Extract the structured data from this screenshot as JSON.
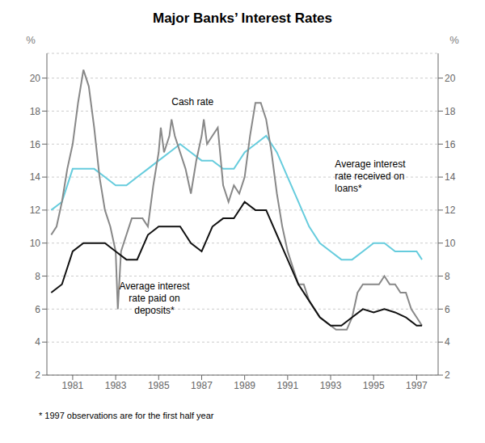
{
  "chart_data": {
    "type": "line",
    "title": "Major Banks’ Interest Rates",
    "ylabel": "%",
    "y2label": "%",
    "footnote": "* 1997 observations are for the first half year",
    "xlim": [
      1979.8,
      1998.0
    ],
    "xticks": [
      1981,
      1983,
      1985,
      1987,
      1989,
      1991,
      1993,
      1995,
      1997
    ],
    "ylim": [
      2,
      21.5
    ],
    "yticks": [
      2,
      4,
      6,
      8,
      10,
      12,
      14,
      16,
      18,
      20
    ],
    "y2lim": [
      2,
      21.5
    ],
    "y2ticks": [
      2,
      4,
      6,
      8,
      10,
      12,
      14,
      16,
      18,
      20
    ],
    "grid": true,
    "series": [
      {
        "color": "#66ccdd",
        "x": [
          1980.0,
          1980.5,
          1981.0,
          1981.5,
          1982.0,
          1982.5,
          1983.0,
          1983.5,
          1984.0,
          1984.5,
          1985.0,
          1985.5,
          1986.0,
          1986.5,
          1987.0,
          1987.5,
          1988.0,
          1988.5,
          1989.0,
          1989.5,
          1990.0,
          1990.5,
          1991.0,
          1991.5,
          1992.0,
          1992.5,
          1993.0,
          1993.5,
          1994.0,
          1994.5,
          1995.0,
          1995.5,
          1996.0,
          1996.5,
          1997.0,
          1997.25
        ],
        "values": [
          12.0,
          12.5,
          14.5,
          14.5,
          14.5,
          14.0,
          13.5,
          13.5,
          14.0,
          14.5,
          15.0,
          15.5,
          16.0,
          15.5,
          15.0,
          15.0,
          14.5,
          14.5,
          15.5,
          16.0,
          16.5,
          15.5,
          14.0,
          12.5,
          11.0,
          10.0,
          9.5,
          9.0,
          9.0,
          9.5,
          10.0,
          10.0,
          9.5,
          9.5,
          9.5,
          9.0
        ]
      },
      {
        "color": "#888888",
        "x": [
          1980.0,
          1980.25,
          1980.5,
          1980.75,
          1981.0,
          1981.25,
          1981.5,
          1981.75,
          1982.0,
          1982.25,
          1982.5,
          1982.75,
          1983.0,
          1983.1,
          1983.25,
          1983.5,
          1983.75,
          1984.0,
          1984.25,
          1984.5,
          1984.75,
          1985.0,
          1985.1,
          1985.25,
          1985.5,
          1985.6,
          1985.75,
          1986.0,
          1986.25,
          1986.5,
          1986.75,
          1987.0,
          1987.1,
          1987.25,
          1987.5,
          1987.75,
          1988.0,
          1988.25,
          1988.5,
          1988.75,
          1989.0,
          1989.25,
          1989.5,
          1989.75,
          1990.0,
          1990.25,
          1990.5,
          1990.75,
          1991.0,
          1991.25,
          1991.5,
          1991.75,
          1992.0,
          1992.25,
          1992.5,
          1992.75,
          1993.0,
          1993.25,
          1993.5,
          1993.75,
          1994.0,
          1994.25,
          1994.5,
          1994.75,
          1995.0,
          1995.25,
          1995.5,
          1995.75,
          1996.0,
          1996.25,
          1996.5,
          1996.75,
          1997.0,
          1997.25
        ],
        "values": [
          10.5,
          11.0,
          12.5,
          14.5,
          16.0,
          18.5,
          20.5,
          19.5,
          17.0,
          14.0,
          12.0,
          11.0,
          9.5,
          6.0,
          9.5,
          10.5,
          11.5,
          11.5,
          11.5,
          11.0,
          13.5,
          15.5,
          17.0,
          15.5,
          16.5,
          17.5,
          16.5,
          15.5,
          14.5,
          13.0,
          15.0,
          16.5,
          17.5,
          16.0,
          16.5,
          17.0,
          13.5,
          12.5,
          13.5,
          13.0,
          14.0,
          16.5,
          18.5,
          18.5,
          17.5,
          15.5,
          13.0,
          11.0,
          9.5,
          8.5,
          7.5,
          7.5,
          6.5,
          6.0,
          5.5,
          5.25,
          5.0,
          4.75,
          4.75,
          4.75,
          5.5,
          7.0,
          7.5,
          7.5,
          7.5,
          7.5,
          8.0,
          7.5,
          7.5,
          7.0,
          7.0,
          6.0,
          5.5,
          5.0
        ]
      },
      {
        "color": "#111111",
        "x": [
          1980.0,
          1980.5,
          1981.0,
          1981.5,
          1982.0,
          1982.5,
          1983.0,
          1983.5,
          1984.0,
          1984.5,
          1985.0,
          1985.5,
          1986.0,
          1986.5,
          1987.0,
          1987.5,
          1988.0,
          1988.5,
          1989.0,
          1989.5,
          1990.0,
          1990.5,
          1991.0,
          1991.5,
          1992.0,
          1992.5,
          1993.0,
          1993.5,
          1994.0,
          1994.5,
          1995.0,
          1995.5,
          1996.0,
          1996.5,
          1997.0,
          1997.25
        ],
        "values": [
          7.0,
          7.5,
          9.5,
          10.0,
          10.0,
          10.0,
          9.5,
          9.0,
          9.0,
          10.5,
          11.0,
          11.0,
          11.0,
          10.0,
          9.5,
          11.0,
          11.5,
          11.5,
          12.5,
          12.0,
          12.0,
          10.5,
          9.0,
          7.5,
          6.5,
          5.5,
          5.0,
          5.0,
          5.5,
          6.0,
          5.8,
          6.0,
          5.8,
          5.5,
          5.0,
          5.0
        ]
      }
    ],
    "annotations": [
      {
        "text": "Cash rate",
        "x": 1985.6,
        "y": 18.2
      },
      {
        "text": "Average interest\nrate received on\nloans*",
        "x": 1993.2,
        "y": 15.2
      },
      {
        "text": "Average interest\nrate paid on\ndeposits*",
        "x": 1984.8,
        "y": 7.8
      }
    ]
  }
}
